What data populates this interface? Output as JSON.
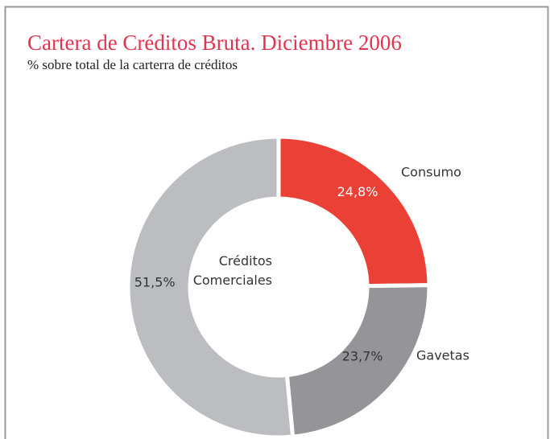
{
  "chart_data": {
    "type": "donut",
    "title": "Cartera de Créditos Bruta. Diciembre 2006",
    "subtitle": "% sobre total de la carterra de créditos",
    "categories": [
      "Consumo",
      "Gavetas",
      "Créditos Comerciales"
    ],
    "values": [
      24.8,
      23.7,
      51.5
    ],
    "value_labels": [
      "24,8%",
      "23,7%",
      "51,5%"
    ],
    "colors": [
      "#ea4035",
      "#959599",
      "#bcbdc1"
    ]
  }
}
